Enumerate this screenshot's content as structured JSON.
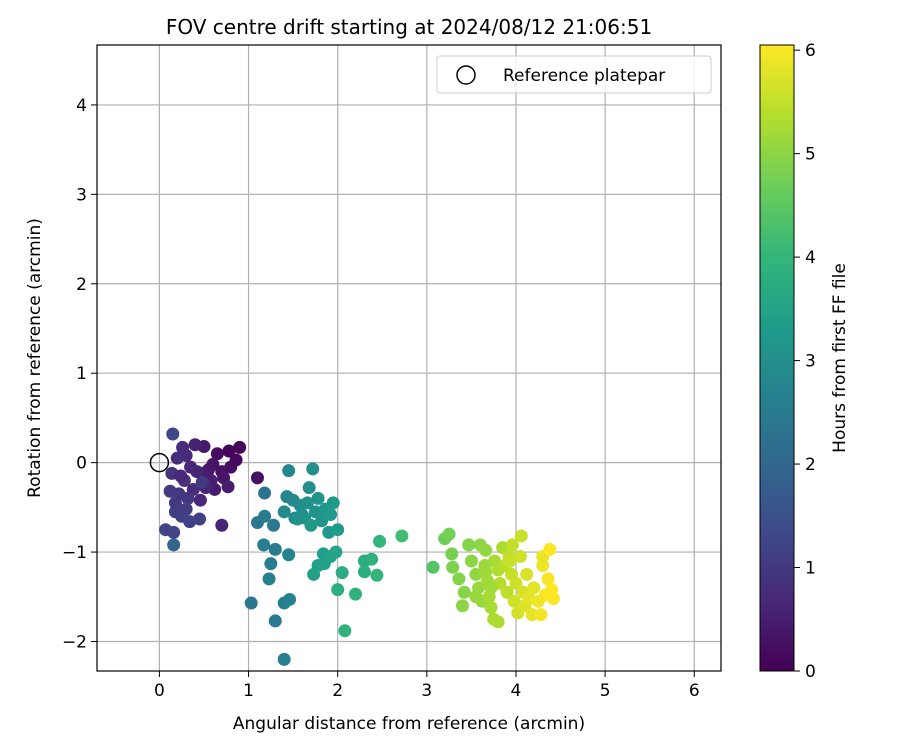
{
  "chart_data": {
    "type": "scatter",
    "title": "FOV centre drift starting at 2024/08/12 21:06:51",
    "xlabel": "Angular distance from reference (arcmin)",
    "ylabel": "Rotation from reference (arcmin)",
    "xlim": [
      -0.7,
      6.3
    ],
    "ylim": [
      -2.33,
      4.67
    ],
    "xticks": [
      0,
      1,
      2,
      3,
      4,
      5,
      6
    ],
    "yticks": [
      -2,
      -1,
      0,
      1,
      2,
      3,
      4
    ],
    "grid": true,
    "legend": {
      "placement": "top-right",
      "entries": [
        "Reference platepar"
      ]
    },
    "reference_point": {
      "x": 0,
      "y": 0
    },
    "colorbar": {
      "label": "Hours from first FF file",
      "colormap": "viridis",
      "range": [
        0,
        6.05
      ],
      "ticks": [
        0,
        1,
        2,
        3,
        4,
        5,
        6
      ]
    },
    "colormap_stops": [
      "#440154",
      "#482878",
      "#3e4a89",
      "#31688e",
      "#26828e",
      "#1f9e89",
      "#35b779",
      "#6ece58",
      "#b5de2b",
      "#fde725"
    ],
    "points": [
      {
        "x": 0.9,
        "y": 0.17,
        "h": 0.05
      },
      {
        "x": 0.78,
        "y": 0.13,
        "h": 0.08
      },
      {
        "x": 0.86,
        "y": 0.03,
        "h": 0.12
      },
      {
        "x": 0.65,
        "y": 0.1,
        "h": 0.18
      },
      {
        "x": 0.8,
        "y": -0.05,
        "h": 0.22
      },
      {
        "x": 0.7,
        "y": -0.1,
        "h": 0.28
      },
      {
        "x": 0.6,
        "y": -0.02,
        "h": 0.3
      },
      {
        "x": 0.72,
        "y": -0.17,
        "h": 0.34
      },
      {
        "x": 0.55,
        "y": -0.08,
        "h": 0.38
      },
      {
        "x": 0.5,
        "y": 0.18,
        "h": 0.42
      },
      {
        "x": 0.62,
        "y": -0.3,
        "h": 0.45
      },
      {
        "x": 0.48,
        "y": -0.12,
        "h": 0.5
      },
      {
        "x": 0.58,
        "y": -0.2,
        "h": 0.52
      },
      {
        "x": 0.4,
        "y": 0.2,
        "h": 0.56
      },
      {
        "x": 0.77,
        "y": -0.27,
        "h": 0.5
      },
      {
        "x": 0.42,
        "y": -0.1,
        "h": 0.6
      },
      {
        "x": 0.52,
        "y": -0.28,
        "h": 0.62
      },
      {
        "x": 0.35,
        "y": -0.05,
        "h": 0.66
      },
      {
        "x": 0.46,
        "y": -0.42,
        "h": 0.7
      },
      {
        "x": 0.3,
        "y": 0.08,
        "h": 0.72
      },
      {
        "x": 0.26,
        "y": 0.17,
        "h": 0.76
      },
      {
        "x": 0.38,
        "y": -0.3,
        "h": 0.8
      },
      {
        "x": 0.2,
        "y": 0.05,
        "h": 0.84
      },
      {
        "x": 0.28,
        "y": -0.2,
        "h": 0.88
      },
      {
        "x": 0.14,
        "y": -0.12,
        "h": 0.9
      },
      {
        "x": 0.32,
        "y": -0.4,
        "h": 0.95
      },
      {
        "x": 0.22,
        "y": -0.35,
        "h": 0.98
      },
      {
        "x": 0.48,
        "y": -0.22,
        "h": 1.0
      },
      {
        "x": 0.12,
        "y": -0.32,
        "h": 1.03
      },
      {
        "x": 0.3,
        "y": -0.52,
        "h": 1.06
      },
      {
        "x": 0.18,
        "y": -0.55,
        "h": 1.1
      },
      {
        "x": 0.25,
        "y": -0.6,
        "h": 1.12
      },
      {
        "x": 0.45,
        "y": -0.63,
        "h": 1.15
      },
      {
        "x": 0.34,
        "y": -0.66,
        "h": 1.18
      },
      {
        "x": 0.07,
        "y": -0.75,
        "h": 1.22
      },
      {
        "x": 0.16,
        "y": -0.78,
        "h": 1.25
      },
      {
        "x": 0.15,
        "y": 0.32,
        "h": 1.28
      },
      {
        "x": 0.7,
        "y": -0.7,
        "h": 0.6
      },
      {
        "x": 0.18,
        "y": -0.45,
        "h": 1.0
      },
      {
        "x": 0.24,
        "y": -0.15,
        "h": 0.7
      },
      {
        "x": 1.1,
        "y": -0.17,
        "h": 0.25
      },
      {
        "x": 0.16,
        "y": -0.92,
        "h": 1.95
      },
      {
        "x": 1.18,
        "y": -0.34,
        "h": 2.3
      },
      {
        "x": 1.1,
        "y": -0.67,
        "h": 2.4
      },
      {
        "x": 1.18,
        "y": -0.6,
        "h": 2.5
      },
      {
        "x": 1.28,
        "y": -0.7,
        "h": 2.45
      },
      {
        "x": 1.17,
        "y": -0.92,
        "h": 2.55
      },
      {
        "x": 1.3,
        "y": -0.97,
        "h": 2.5
      },
      {
        "x": 1.25,
        "y": -1.13,
        "h": 2.6
      },
      {
        "x": 1.23,
        "y": -1.3,
        "h": 2.65
      },
      {
        "x": 1.03,
        "y": -1.57,
        "h": 2.4
      },
      {
        "x": 1.3,
        "y": -1.77,
        "h": 2.45
      },
      {
        "x": 1.4,
        "y": -1.57,
        "h": 2.6
      },
      {
        "x": 1.46,
        "y": -1.53,
        "h": 2.7
      },
      {
        "x": 1.45,
        "y": -1.03,
        "h": 2.75
      },
      {
        "x": 1.4,
        "y": -2.2,
        "h": 2.65
      },
      {
        "x": 1.45,
        "y": -0.09,
        "h": 2.8
      },
      {
        "x": 1.43,
        "y": -0.38,
        "h": 2.75
      },
      {
        "x": 1.5,
        "y": -0.42,
        "h": 2.85
      },
      {
        "x": 1.4,
        "y": -0.55,
        "h": 2.85
      },
      {
        "x": 1.52,
        "y": -0.62,
        "h": 2.9
      },
      {
        "x": 1.58,
        "y": -0.48,
        "h": 2.95
      },
      {
        "x": 1.6,
        "y": -0.58,
        "h": 3.0
      },
      {
        "x": 1.68,
        "y": -0.28,
        "h": 3.0
      },
      {
        "x": 1.72,
        "y": -0.07,
        "h": 3.05
      },
      {
        "x": 1.66,
        "y": -0.45,
        "h": 3.05
      },
      {
        "x": 1.63,
        "y": -0.62,
        "h": 3.1
      },
      {
        "x": 1.75,
        "y": -0.55,
        "h": 3.1
      },
      {
        "x": 1.78,
        "y": -0.4,
        "h": 3.15
      },
      {
        "x": 1.82,
        "y": -0.65,
        "h": 3.15
      },
      {
        "x": 1.7,
        "y": -0.7,
        "h": 3.2
      },
      {
        "x": 1.86,
        "y": -0.52,
        "h": 3.2
      },
      {
        "x": 1.92,
        "y": -0.58,
        "h": 3.25
      },
      {
        "x": 1.95,
        "y": -0.45,
        "h": 3.3
      },
      {
        "x": 1.9,
        "y": -0.78,
        "h": 3.25
      },
      {
        "x": 2.0,
        "y": -0.75,
        "h": 3.3
      },
      {
        "x": 1.55,
        "y": -0.63,
        "h": 3.05
      },
      {
        "x": 1.84,
        "y": -1.02,
        "h": 3.35
      },
      {
        "x": 1.78,
        "y": -1.15,
        "h": 3.4
      },
      {
        "x": 1.73,
        "y": -1.25,
        "h": 3.45
      },
      {
        "x": 1.85,
        "y": -1.13,
        "h": 3.45
      },
      {
        "x": 1.92,
        "y": -1.05,
        "h": 3.5
      },
      {
        "x": 1.98,
        "y": -1.0,
        "h": 3.55
      },
      {
        "x": 2.05,
        "y": -1.23,
        "h": 3.7
      },
      {
        "x": 2.0,
        "y": -1.42,
        "h": 3.8
      },
      {
        "x": 2.2,
        "y": -1.47,
        "h": 3.85
      },
      {
        "x": 2.08,
        "y": -1.88,
        "h": 3.9
      },
      {
        "x": 2.3,
        "y": -1.1,
        "h": 3.75
      },
      {
        "x": 2.3,
        "y": -1.22,
        "h": 3.8
      },
      {
        "x": 2.38,
        "y": -1.08,
        "h": 3.85
      },
      {
        "x": 2.44,
        "y": -1.26,
        "h": 3.95
      },
      {
        "x": 2.47,
        "y": -0.88,
        "h": 3.95
      },
      {
        "x": 2.72,
        "y": -0.82,
        "h": 4.2
      },
      {
        "x": 3.07,
        "y": -1.17,
        "h": 4.4
      },
      {
        "x": 3.2,
        "y": -0.85,
        "h": 4.7
      },
      {
        "x": 3.25,
        "y": -0.8,
        "h": 4.75
      },
      {
        "x": 3.28,
        "y": -1.02,
        "h": 4.8
      },
      {
        "x": 3.29,
        "y": -1.17,
        "h": 4.85
      },
      {
        "x": 3.36,
        "y": -1.3,
        "h": 4.9
      },
      {
        "x": 3.42,
        "y": -1.45,
        "h": 4.95
      },
      {
        "x": 3.4,
        "y": -1.6,
        "h": 5.0
      },
      {
        "x": 3.47,
        "y": -0.92,
        "h": 4.9
      },
      {
        "x": 3.5,
        "y": -1.1,
        "h": 5.0
      },
      {
        "x": 3.55,
        "y": -1.25,
        "h": 5.05
      },
      {
        "x": 3.58,
        "y": -1.4,
        "h": 5.1
      },
      {
        "x": 3.62,
        "y": -1.55,
        "h": 5.1
      },
      {
        "x": 3.6,
        "y": -0.92,
        "h": 5.0
      },
      {
        "x": 3.66,
        "y": -0.98,
        "h": 5.05
      },
      {
        "x": 3.66,
        "y": -1.22,
        "h": 5.15
      },
      {
        "x": 3.68,
        "y": -1.32,
        "h": 5.2
      },
      {
        "x": 3.7,
        "y": -1.5,
        "h": 5.25
      },
      {
        "x": 3.72,
        "y": -1.62,
        "h": 5.25
      },
      {
        "x": 3.75,
        "y": -1.75,
        "h": 5.3
      },
      {
        "x": 3.8,
        "y": -1.78,
        "h": 5.3
      },
      {
        "x": 3.76,
        "y": -1.1,
        "h": 5.25
      },
      {
        "x": 3.8,
        "y": -1.2,
        "h": 5.3
      },
      {
        "x": 3.82,
        "y": -1.35,
        "h": 5.35
      },
      {
        "x": 3.85,
        "y": -0.95,
        "h": 5.3
      },
      {
        "x": 3.88,
        "y": -1.15,
        "h": 5.4
      },
      {
        "x": 3.9,
        "y": -1.45,
        "h": 5.45
      },
      {
        "x": 3.92,
        "y": -1.05,
        "h": 5.5
      },
      {
        "x": 3.95,
        "y": -1.25,
        "h": 5.55
      },
      {
        "x": 3.96,
        "y": -0.92,
        "h": 5.5
      },
      {
        "x": 3.98,
        "y": -1.55,
        "h": 5.6
      },
      {
        "x": 4.0,
        "y": -1.35,
        "h": 5.6
      },
      {
        "x": 4.02,
        "y": -1.68,
        "h": 5.65
      },
      {
        "x": 4.05,
        "y": -1.05,
        "h": 5.6
      },
      {
        "x": 4.06,
        "y": -0.82,
        "h": 5.55
      },
      {
        "x": 4.08,
        "y": -1.45,
        "h": 5.7
      },
      {
        "x": 4.1,
        "y": -1.6,
        "h": 5.75
      },
      {
        "x": 4.12,
        "y": -1.25,
        "h": 5.7
      },
      {
        "x": 4.15,
        "y": -1.52,
        "h": 5.8
      },
      {
        "x": 4.18,
        "y": -1.7,
        "h": 5.85
      },
      {
        "x": 4.2,
        "y": -1.4,
        "h": 5.8
      },
      {
        "x": 4.25,
        "y": -1.55,
        "h": 5.9
      },
      {
        "x": 4.28,
        "y": -1.7,
        "h": 5.95
      },
      {
        "x": 4.3,
        "y": -1.15,
        "h": 5.9
      },
      {
        "x": 4.3,
        "y": -1.05,
        "h": 5.85
      },
      {
        "x": 4.33,
        "y": -1.48,
        "h": 6.0
      },
      {
        "x": 4.36,
        "y": -1.3,
        "h": 6.0
      },
      {
        "x": 4.38,
        "y": -0.97,
        "h": 6.05
      },
      {
        "x": 4.4,
        "y": -1.42,
        "h": 6.05
      },
      {
        "x": 4.42,
        "y": -1.52,
        "h": 6.05
      },
      {
        "x": 3.72,
        "y": -1.4,
        "h": 5.2
      },
      {
        "x": 3.55,
        "y": -1.5,
        "h": 5.1
      },
      {
        "x": 3.93,
        "y": -1.1,
        "h": 5.55
      },
      {
        "x": 3.65,
        "y": -1.15,
        "h": 5.15
      }
    ]
  }
}
